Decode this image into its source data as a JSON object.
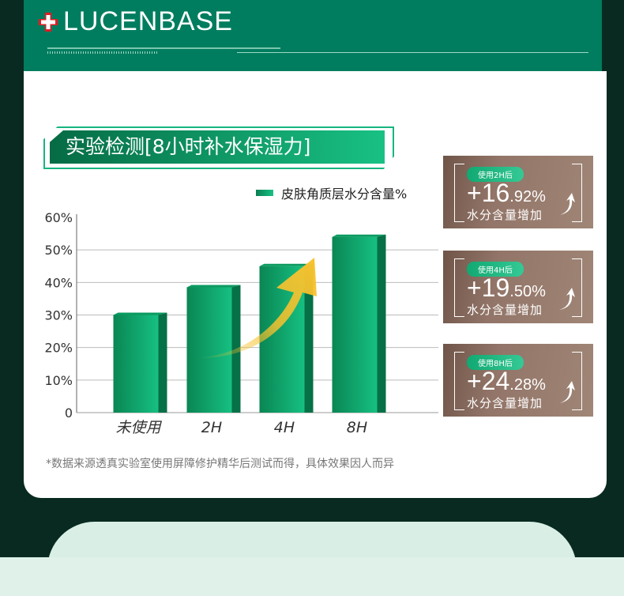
{
  "header": {
    "brand": "LUCENBASE"
  },
  "section_title": "实验检测[8小时补水保湿力]",
  "chart_data": {
    "type": "bar",
    "title": "",
    "legend": [
      "皮肤角质层水分含量%"
    ],
    "legend_position": "top-right",
    "categories": [
      "未使用",
      "2H",
      "4H",
      "8H"
    ],
    "series": [
      {
        "name": "皮肤角质层水分含量%",
        "values": [
          30,
          38.5,
          45,
          54
        ]
      }
    ],
    "yticks": [
      "0",
      "10%",
      "20%",
      "30%",
      "40%",
      "50%",
      "60%"
    ],
    "ylim": [
      0,
      60
    ],
    "grid": true,
    "xlabel": "",
    "ylabel": "",
    "colors": {
      "bar": "#12a86e",
      "bar_side": "#067046",
      "arrow": "#f7c22e"
    }
  },
  "note": "*数据来源透真实验室使用屏障修护精华后测试而得，具体效果因人而异",
  "stats": [
    {
      "badge": "使用2H后",
      "plus": "+",
      "big": "16",
      "small": ".92%",
      "label": "水分含量增加"
    },
    {
      "badge": "使用4H后",
      "plus": "+",
      "big": "19",
      "small": ".50%",
      "label": "水分含量增加"
    },
    {
      "badge": "使用8H后",
      "plus": "+",
      "big": "24",
      "small": ".28%",
      "label": "水分含量增加"
    }
  ]
}
